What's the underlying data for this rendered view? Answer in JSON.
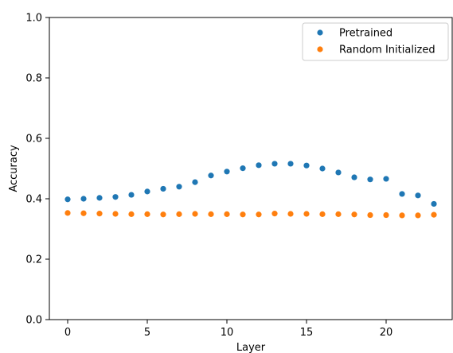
{
  "chart_data": {
    "type": "scatter",
    "xlabel": "Layer",
    "ylabel": "Accuracy",
    "xlim": [
      -1.15,
      24.15
    ],
    "ylim": [
      0.0,
      1.0
    ],
    "xticks": [
      0,
      5,
      10,
      15,
      20
    ],
    "xtick_labels": [
      "0",
      "5",
      "10",
      "15",
      "20"
    ],
    "yticks": [
      0.0,
      0.2,
      0.4,
      0.6,
      0.8,
      1.0
    ],
    "ytick_labels": [
      "0.0",
      "0.2",
      "0.4",
      "0.6",
      "0.8",
      "1.0"
    ],
    "grid": false,
    "legend_position": "top-right",
    "series": [
      {
        "name": "Pretrained",
        "color": "#1f77b4",
        "x": [
          0,
          1,
          2,
          3,
          4,
          5,
          6,
          7,
          8,
          9,
          10,
          11,
          12,
          13,
          14,
          15,
          16,
          17,
          18,
          19,
          20,
          21,
          22,
          23
        ],
        "y": [
          0.398,
          0.4,
          0.403,
          0.406,
          0.413,
          0.424,
          0.433,
          0.44,
          0.455,
          0.477,
          0.49,
          0.501,
          0.511,
          0.516,
          0.516,
          0.51,
          0.5,
          0.487,
          0.471,
          0.464,
          0.466,
          0.416,
          0.411,
          0.383
        ]
      },
      {
        "name": "Random Initialized",
        "color": "#ff7f0e",
        "x": [
          0,
          1,
          2,
          3,
          4,
          5,
          6,
          7,
          8,
          9,
          10,
          11,
          12,
          13,
          14,
          15,
          16,
          17,
          18,
          19,
          20,
          21,
          22,
          23
        ],
        "y": [
          0.353,
          0.352,
          0.351,
          0.35,
          0.349,
          0.349,
          0.348,
          0.349,
          0.35,
          0.349,
          0.349,
          0.348,
          0.348,
          0.351,
          0.35,
          0.35,
          0.349,
          0.349,
          0.348,
          0.346,
          0.346,
          0.345,
          0.345,
          0.347
        ]
      }
    ]
  }
}
